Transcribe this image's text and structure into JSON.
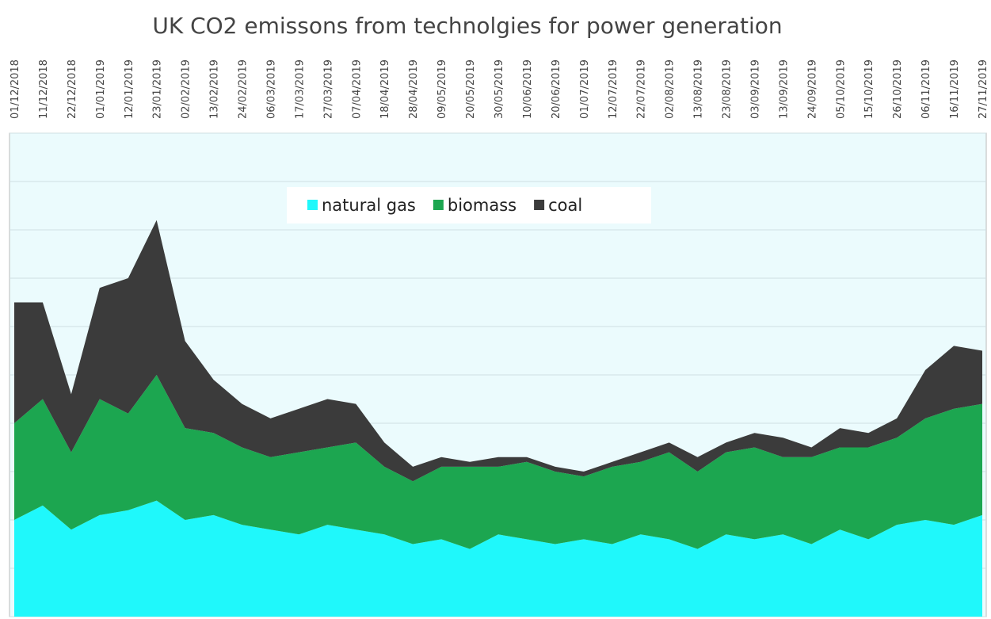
{
  "chart_data": {
    "type": "stacked-area",
    "title": "UK  CO2 emissons from technolgies for power generation",
    "categories": [
      "01/12/2018",
      "11/12/2018",
      "22/12/2018",
      "01/01/2019",
      "12/01/2019",
      "23/01/2019",
      "02/02/2019",
      "13/02/2019",
      "24/02/2019",
      "06/03/2019",
      "17/03/2019",
      "27/03/2019",
      "07/04/2019",
      "18/04/2019",
      "28/04/2019",
      "09/05/2019",
      "20/05/2019",
      "30/05/2019",
      "10/06/2019",
      "20/06/2019",
      "01/07/2019",
      "12/07/2019",
      "22/07/2019",
      "02/08/2019",
      "13/08/2019",
      "23/08/2019",
      "03/09/2019",
      "13/09/2019",
      "24/09/2019",
      "05/10/2019",
      "15/10/2019",
      "26/10/2019",
      "06/11/2019",
      "16/11/2019",
      "27/11/2019"
    ],
    "series": [
      {
        "name": "natural gas",
        "color": "#1ff8fb",
        "values": [
          2.0,
          2.3,
          1.8,
          2.1,
          2.2,
          2.4,
          2.0,
          2.1,
          1.9,
          1.8,
          1.7,
          1.9,
          1.8,
          1.7,
          1.5,
          1.6,
          1.4,
          1.7,
          1.6,
          1.5,
          1.6,
          1.5,
          1.7,
          1.6,
          1.4,
          1.7,
          1.6,
          1.7,
          1.5,
          1.8,
          1.6,
          1.9,
          2.0,
          1.9,
          2.1
        ]
      },
      {
        "name": "biomass",
        "color": "#1ca650",
        "values": [
          2.0,
          2.2,
          1.6,
          2.4,
          2.0,
          2.6,
          1.9,
          1.7,
          1.6,
          1.5,
          1.7,
          1.6,
          1.8,
          1.4,
          1.3,
          1.5,
          1.7,
          1.4,
          1.6,
          1.5,
          1.3,
          1.6,
          1.5,
          1.8,
          1.6,
          1.7,
          1.9,
          1.6,
          1.8,
          1.7,
          1.9,
          1.8,
          2.1,
          2.4,
          2.3
        ]
      },
      {
        "name": "coal",
        "color": "#3b3b3b",
        "values": [
          2.5,
          2.0,
          1.2,
          2.3,
          2.8,
          3.2,
          1.8,
          1.1,
          0.9,
          0.8,
          0.9,
          1.0,
          0.8,
          0.5,
          0.3,
          0.2,
          0.1,
          0.2,
          0.1,
          0.1,
          0.1,
          0.1,
          0.2,
          0.2,
          0.3,
          0.2,
          0.3,
          0.4,
          0.2,
          0.4,
          0.3,
          0.4,
          1.0,
          1.3,
          1.1
        ]
      }
    ],
    "ylim": [
      0,
      10
    ],
    "yticks": [
      0,
      1,
      2,
      3,
      4,
      5,
      6,
      7,
      8,
      9,
      10
    ],
    "grid": true,
    "legend": "top"
  }
}
